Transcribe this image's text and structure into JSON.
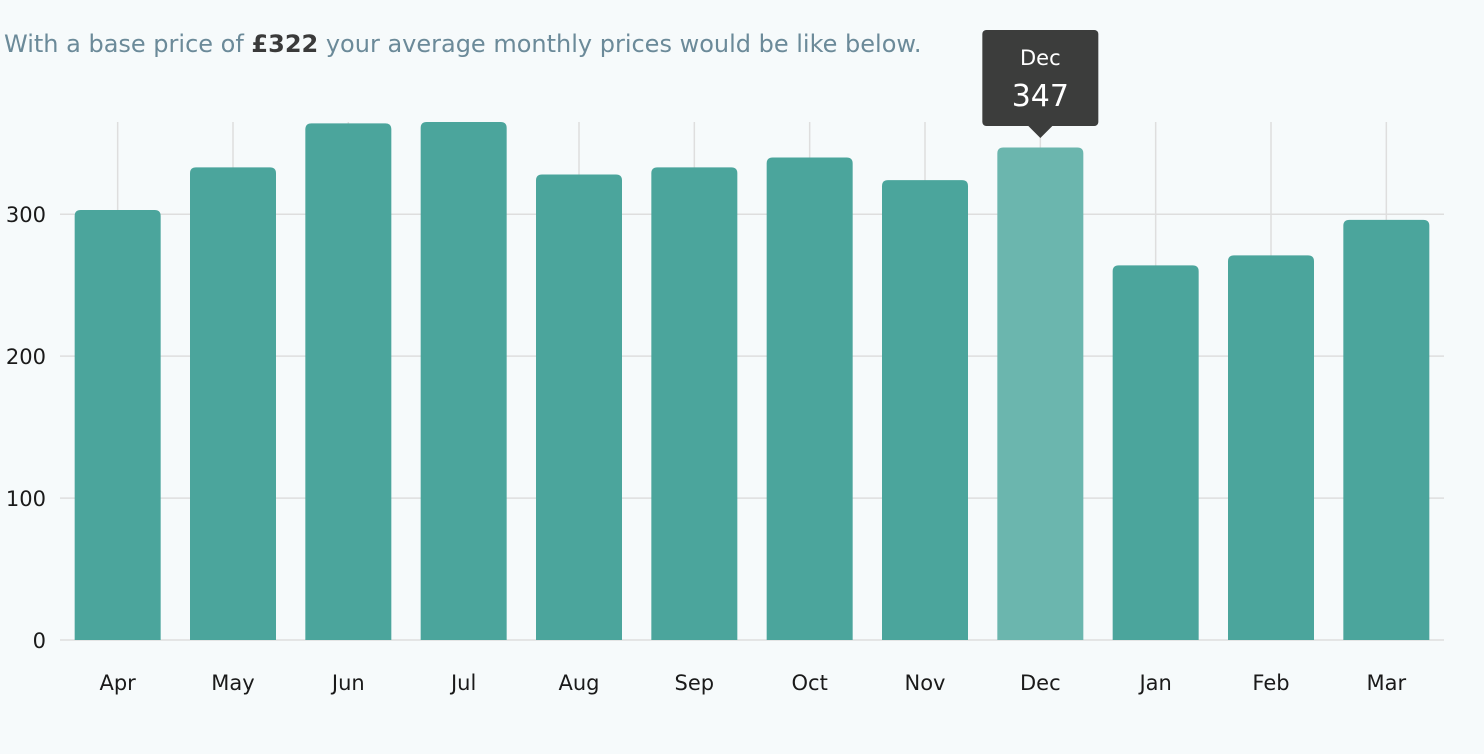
{
  "intro": {
    "prefix": "With a base price of ",
    "price": "£322",
    "suffix": " your average monthly prices would be like below."
  },
  "colors": {
    "bar": "#4ba59c",
    "bar_highlight": "#6bb6ae",
    "grid": "#dedede",
    "tooltip_bg": "#3c3d3c"
  },
  "chart_data": {
    "type": "bar",
    "categories": [
      "Apr",
      "May",
      "Jun",
      "Jul",
      "Aug",
      "Sep",
      "Oct",
      "Nov",
      "Dec",
      "Jan",
      "Feb",
      "Mar"
    ],
    "values": [
      303,
      333,
      364,
      365,
      328,
      333,
      340,
      324,
      347,
      264,
      271,
      296
    ],
    "ylim": [
      0,
      365
    ],
    "yticks": [
      0,
      100,
      200,
      300
    ],
    "grid": true,
    "highlighted": "Dec",
    "tooltip": {
      "label": "Dec",
      "value": "347"
    }
  }
}
